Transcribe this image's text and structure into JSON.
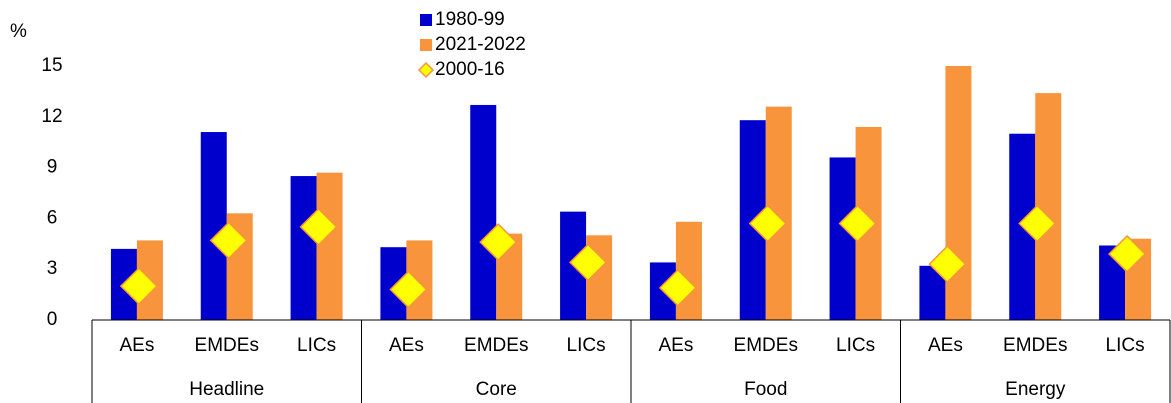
{
  "chart_data": {
    "type": "bar",
    "y_label": "%",
    "categories": [
      "AEs",
      "EMDEs",
      "LICs",
      "AEs",
      "EMDEs",
      "LICs",
      "AEs",
      "EMDEs",
      "LICs",
      "AEs",
      "EMDEs",
      "LICs"
    ],
    "groups": [
      "Headline",
      "Core",
      "Food",
      "Energy"
    ],
    "series": [
      {
        "name": "1980-99",
        "color": "#0000cc",
        "marker": "bar",
        "values": [
          4.2,
          11.1,
          8.5,
          4.3,
          12.7,
          6.4,
          3.4,
          11.8,
          9.6,
          3.2,
          11.0,
          4.4
        ]
      },
      {
        "name": "2021-2022",
        "color": "#f7943c",
        "marker": "bar",
        "values": [
          4.7,
          6.3,
          8.7,
          4.7,
          5.1,
          5.0,
          5.8,
          12.6,
          11.4,
          15.0,
          13.4,
          4.8
        ]
      },
      {
        "name": "2000-16",
        "color": "#ffff00",
        "marker": "diamond",
        "values": [
          2.0,
          4.7,
          5.5,
          1.8,
          4.6,
          3.4,
          1.9,
          5.7,
          5.7,
          3.3,
          5.7,
          3.9
        ]
      }
    ],
    "ylim": [
      0,
      15
    ],
    "yticks": [
      0,
      3,
      6,
      9,
      12,
      15
    ]
  }
}
